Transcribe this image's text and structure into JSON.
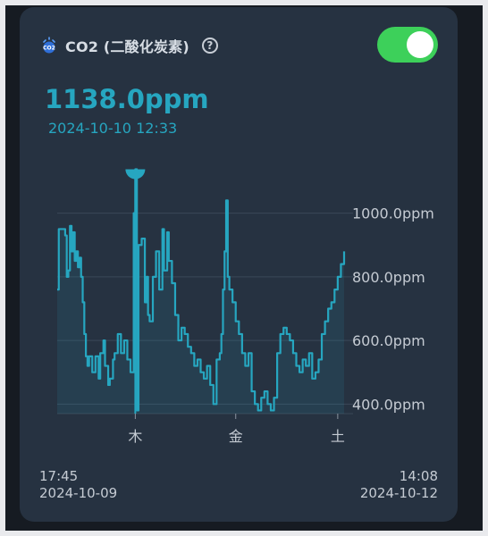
{
  "sensor": {
    "icon": "co2-sensor-icon",
    "title": "CO2 (二酸化炭素)",
    "help": "?",
    "enabled": true,
    "toggle_color": "#3dd05a"
  },
  "reading": {
    "value": "1138.0ppm",
    "timestamp": "2024-10-10 12:33",
    "accent_color": "#26a6c0"
  },
  "range": {
    "start_time": "17:45",
    "start_date": "2024-10-09",
    "end_time": "14:08",
    "end_date": "2024-10-12"
  },
  "chart_data": {
    "type": "line",
    "y_tick_labels": [
      "1000.0ppm",
      "800.0ppm",
      "600.0ppm",
      "400.0ppm"
    ],
    "y_ticks": [
      1000,
      800,
      600,
      400
    ],
    "ylim": [
      370,
      1100
    ],
    "x_tick_labels": [
      "木",
      "金",
      "土"
    ],
    "x_ticks": [
      0.245,
      0.56,
      0.88
    ],
    "grid": true,
    "highlight": {
      "x": 0.245,
      "y": 1138
    },
    "series": [
      {
        "values": [
          [
            0.0,
            760
          ],
          [
            0.005,
            950
          ],
          [
            0.02,
            950
          ],
          [
            0.025,
            930
          ],
          [
            0.03,
            800
          ],
          [
            0.035,
            820
          ],
          [
            0.04,
            960
          ],
          [
            0.045,
            880
          ],
          [
            0.05,
            940
          ],
          [
            0.055,
            850
          ],
          [
            0.06,
            880
          ],
          [
            0.065,
            830
          ],
          [
            0.07,
            860
          ],
          [
            0.075,
            800
          ],
          [
            0.08,
            720
          ],
          [
            0.085,
            620
          ],
          [
            0.09,
            550
          ],
          [
            0.095,
            520
          ],
          [
            0.1,
            550
          ],
          [
            0.11,
            500
          ],
          [
            0.12,
            550
          ],
          [
            0.13,
            480
          ],
          [
            0.135,
            560
          ],
          [
            0.145,
            600
          ],
          [
            0.15,
            520
          ],
          [
            0.16,
            460
          ],
          [
            0.165,
            480
          ],
          [
            0.175,
            540
          ],
          [
            0.18,
            560
          ],
          [
            0.19,
            620
          ],
          [
            0.2,
            560
          ],
          [
            0.21,
            600
          ],
          [
            0.22,
            540
          ],
          [
            0.23,
            500
          ],
          [
            0.24,
            1000
          ],
          [
            0.245,
            1138
          ],
          [
            0.25,
            380
          ],
          [
            0.255,
            900
          ],
          [
            0.265,
            920
          ],
          [
            0.275,
            720
          ],
          [
            0.28,
            800
          ],
          [
            0.285,
            680
          ],
          [
            0.29,
            660
          ],
          [
            0.3,
            800
          ],
          [
            0.31,
            880
          ],
          [
            0.32,
            760
          ],
          [
            0.33,
            950
          ],
          [
            0.335,
            820
          ],
          [
            0.345,
            940
          ],
          [
            0.35,
            850
          ],
          [
            0.36,
            780
          ],
          [
            0.37,
            680
          ],
          [
            0.38,
            600
          ],
          [
            0.39,
            640
          ],
          [
            0.4,
            620
          ],
          [
            0.41,
            580
          ],
          [
            0.42,
            560
          ],
          [
            0.43,
            520
          ],
          [
            0.44,
            540
          ],
          [
            0.45,
            500
          ],
          [
            0.46,
            480
          ],
          [
            0.47,
            520
          ],
          [
            0.48,
            460
          ],
          [
            0.49,
            400
          ],
          [
            0.5,
            540
          ],
          [
            0.51,
            560
          ],
          [
            0.515,
            620
          ],
          [
            0.52,
            760
          ],
          [
            0.525,
            880
          ],
          [
            0.53,
            1040
          ],
          [
            0.535,
            800
          ],
          [
            0.54,
            760
          ],
          [
            0.55,
            720
          ],
          [
            0.56,
            660
          ],
          [
            0.57,
            620
          ],
          [
            0.58,
            560
          ],
          [
            0.59,
            520
          ],
          [
            0.6,
            560
          ],
          [
            0.61,
            440
          ],
          [
            0.62,
            400
          ],
          [
            0.63,
            380
          ],
          [
            0.64,
            420
          ],
          [
            0.65,
            440
          ],
          [
            0.66,
            400
          ],
          [
            0.67,
            380
          ],
          [
            0.68,
            420
          ],
          [
            0.69,
            560
          ],
          [
            0.7,
            620
          ],
          [
            0.71,
            640
          ],
          [
            0.72,
            620
          ],
          [
            0.73,
            600
          ],
          [
            0.74,
            560
          ],
          [
            0.75,
            520
          ],
          [
            0.76,
            500
          ],
          [
            0.77,
            540
          ],
          [
            0.78,
            520
          ],
          [
            0.79,
            560
          ],
          [
            0.8,
            480
          ],
          [
            0.81,
            500
          ],
          [
            0.82,
            540
          ],
          [
            0.83,
            620
          ],
          [
            0.84,
            660
          ],
          [
            0.85,
            700
          ],
          [
            0.86,
            720
          ],
          [
            0.87,
            760
          ],
          [
            0.88,
            800
          ],
          [
            0.89,
            840
          ],
          [
            0.9,
            880
          ]
        ]
      }
    ]
  }
}
